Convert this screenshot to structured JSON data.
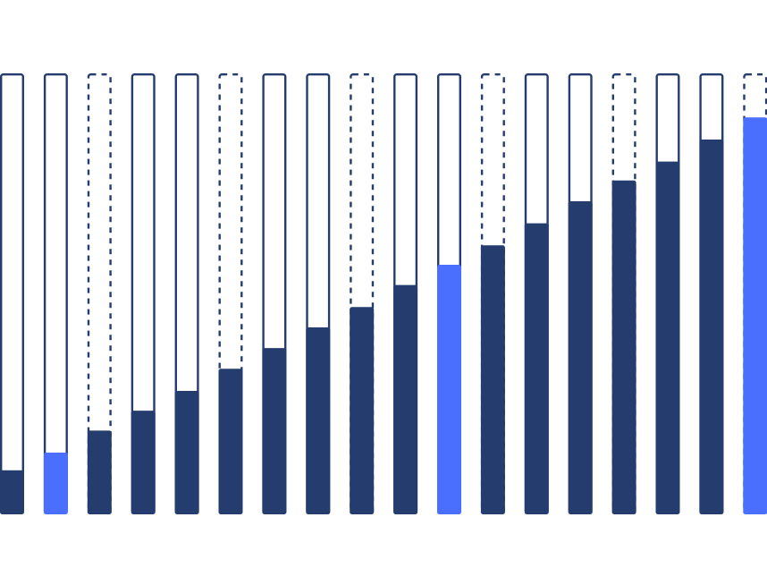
{
  "chart_data": {
    "type": "bar",
    "title": "",
    "xlabel": "",
    "ylabel": "",
    "ylim": [
      0,
      1
    ],
    "grid": false,
    "values": [
      0.1,
      0.14,
      0.19,
      0.235,
      0.28,
      0.33,
      0.377,
      0.424,
      0.47,
      0.52,
      0.566,
      0.61,
      0.66,
      0.71,
      0.757,
      0.8,
      0.85,
      0.9
    ],
    "outline_style": [
      "solid",
      "solid",
      "dashed",
      "solid",
      "solid",
      "dashed",
      "solid",
      "solid",
      "dashed",
      "solid",
      "solid",
      "dashed",
      "solid",
      "solid",
      "dashed",
      "solid",
      "solid",
      "dashed"
    ],
    "highlighted": [
      false,
      true,
      false,
      false,
      false,
      false,
      false,
      false,
      false,
      false,
      true,
      false,
      false,
      false,
      false,
      false,
      false,
      true
    ],
    "colors": {
      "fill": "#243c6e",
      "highlight": "#4a6fff",
      "outline": "#243c6e",
      "background": "#ffffff"
    }
  }
}
